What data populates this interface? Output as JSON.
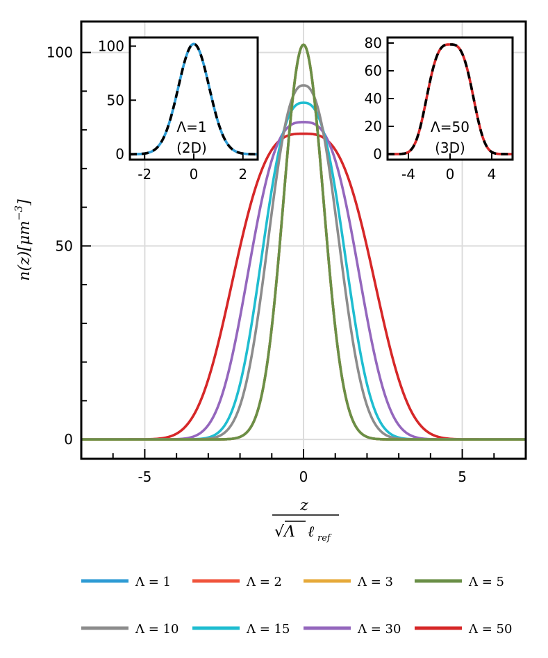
{
  "chart_data": {
    "type": "line",
    "main": {
      "xlabel_num": "z",
      "xlabel_den_sqrt": "√Λ",
      "xlabel_den_ell": "ℓ",
      "xlabel_den_sub": "ref",
      "ylabel_main": "n(z)[μm",
      "ylabel_sup": "−3",
      "ylabel_close": "]",
      "xlim": [
        -7,
        7
      ],
      "ylim": [
        -5,
        108
      ],
      "xticks": [
        {
          "v": -5,
          "label": "-5"
        },
        {
          "v": 0,
          "label": "0"
        },
        {
          "v": 5,
          "label": "5"
        }
      ],
      "yticks": [
        {
          "v": 0,
          "label": "0"
        },
        {
          "v": 50,
          "label": "50"
        },
        {
          "v": 100,
          "label": "100"
        }
      ],
      "grid": true,
      "series": [
        {
          "name": "Λ = 1",
          "color": "#2e9bd4",
          "shape": "gauss",
          "peak": 102,
          "width": 0.63
        },
        {
          "name": "Λ = 2",
          "color": "#f0543c",
          "shape": "gauss",
          "peak": 102,
          "width": 0.63
        },
        {
          "name": "Λ = 3",
          "color": "#e6a93a",
          "shape": "gauss",
          "peak": 102,
          "width": 0.63
        },
        {
          "name": "Λ = 5",
          "color": "#6a8f47",
          "shape": "gauss",
          "peak": 102,
          "width": 0.63
        },
        {
          "name": "Λ = 10",
          "color": "#8c8c8c",
          "shape": "flat",
          "peak": 91.5,
          "width": 1.05,
          "p": 2.4
        },
        {
          "name": "Λ = 15",
          "color": "#1fbdd0",
          "shape": "flat",
          "peak": 87,
          "width": 1.22,
          "p": 2.6
        },
        {
          "name": "Λ = 30",
          "color": "#9467bd",
          "shape": "flat",
          "peak": 82,
          "width": 1.6,
          "p": 2.9
        },
        {
          "name": "Λ = 50",
          "color": "#d62728",
          "shape": "flat",
          "peak": 79,
          "width": 2.05,
          "p": 3.1
        }
      ]
    },
    "inset_2d": {
      "label_line1": "Λ=1",
      "label_line2": "(2D)",
      "label_color": "#2e9bd4",
      "xlim": [
        -2.6,
        2.6
      ],
      "ylim": [
        -5,
        108
      ],
      "xticks": [
        {
          "v": -2,
          "label": "-2"
        },
        {
          "v": 0,
          "label": "0"
        },
        {
          "v": 2,
          "label": "2"
        }
      ],
      "yticks": [
        {
          "v": 0,
          "label": "0"
        },
        {
          "v": 50,
          "label": "50"
        },
        {
          "v": 100,
          "label": "100"
        }
      ],
      "curve": {
        "color": "#2e9bd4",
        "peak": 102,
        "width": 0.63,
        "shape": "gauss"
      },
      "fit": {
        "color": "#000000",
        "style": "dashed"
      }
    },
    "inset_3d": {
      "label_line1": "Λ=50",
      "label_line2": "(3D)",
      "label_color": "#d62728",
      "xlim": [
        -6,
        6
      ],
      "ylim": [
        -4,
        84
      ],
      "xticks": [
        {
          "v": -4,
          "label": "-4"
        },
        {
          "v": 0,
          "label": "0"
        },
        {
          "v": 4,
          "label": "4"
        }
      ],
      "yticks": [
        {
          "v": 0,
          "label": "0"
        },
        {
          "v": 20,
          "label": "20"
        },
        {
          "v": 40,
          "label": "40"
        },
        {
          "v": 60,
          "label": "60"
        },
        {
          "v": 80,
          "label": "80"
        }
      ],
      "curve": {
        "color": "#d62728",
        "peak": 79,
        "width": 2.05,
        "shape": "flat",
        "p": 3.1
      },
      "fit": {
        "color": "#000000",
        "style": "dashed"
      }
    },
    "legend": {
      "placement": "bottom",
      "rows": 2,
      "columns": 4
    }
  }
}
